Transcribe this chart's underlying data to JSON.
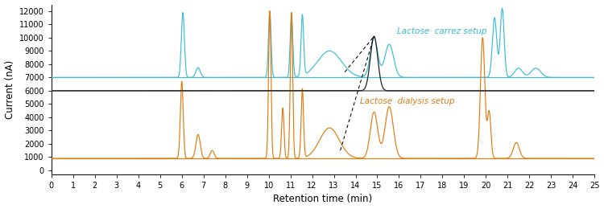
{
  "xlabel": "Retention time (min)",
  "ylabel": "Current (nA)",
  "xlim": [
    0,
    25
  ],
  "ylim": [
    -300,
    12500
  ],
  "yticks": [
    0,
    1000,
    2000,
    3000,
    4000,
    5000,
    6000,
    7000,
    8000,
    9000,
    10000,
    11000,
    12000
  ],
  "xticks": [
    0,
    1,
    2,
    3,
    4,
    5,
    6,
    7,
    8,
    9,
    10,
    11,
    12,
    13,
    14,
    15,
    16,
    17,
    18,
    19,
    20,
    21,
    22,
    23,
    24,
    25
  ],
  "orange_color": "#E07B10",
  "blue_color": "#3BBCD4",
  "black_color": "#222222",
  "gray_color": "#707070",
  "orange_label": "Lactose  dialysis setup",
  "blue_label": "Lactose  carrez setup",
  "orange_baseline": 900,
  "blue_baseline": 7000,
  "black_baseline": 6000,
  "figsize": [
    7.5,
    2.6
  ],
  "dpi": 100
}
